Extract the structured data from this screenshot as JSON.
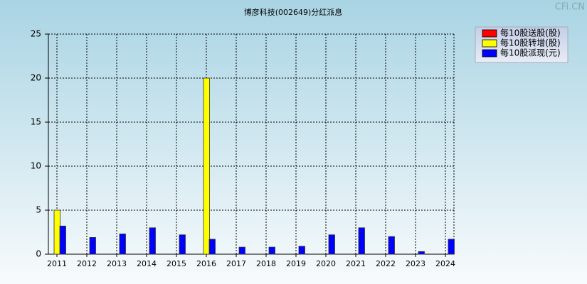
{
  "chart_data": {
    "type": "bar",
    "title": "博彦科技(002649)分红派息",
    "watermark": "CFi.CN",
    "categories": [
      "2011",
      "2012",
      "2013",
      "2014",
      "2015",
      "2016",
      "2017",
      "2018",
      "2019",
      "2020",
      "2021",
      "2022",
      "2023",
      "2024"
    ],
    "series": [
      {
        "name": "每10股送股(股)",
        "color": "#ff0000",
        "values": [
          0,
          0,
          0,
          0,
          0,
          0,
          0,
          0,
          0,
          0,
          0,
          0,
          0,
          0
        ]
      },
      {
        "name": "每10股转增(股)",
        "color": "#ffff00",
        "values": [
          5,
          0,
          0,
          0,
          0,
          20,
          0,
          0,
          0,
          0,
          0,
          0,
          0,
          0
        ]
      },
      {
        "name": "每10股派现(元)",
        "color": "#0000ff",
        "values": [
          3.2,
          1.9,
          2.3,
          3.0,
          2.2,
          1.7,
          0.8,
          0.8,
          0.9,
          2.2,
          3.0,
          2.0,
          0.3,
          1.7
        ]
      }
    ],
    "ylim": [
      0,
      25
    ],
    "yticks": [
      0,
      5,
      10,
      15,
      20,
      25
    ],
    "grid": true,
    "legend": "top-right"
  }
}
